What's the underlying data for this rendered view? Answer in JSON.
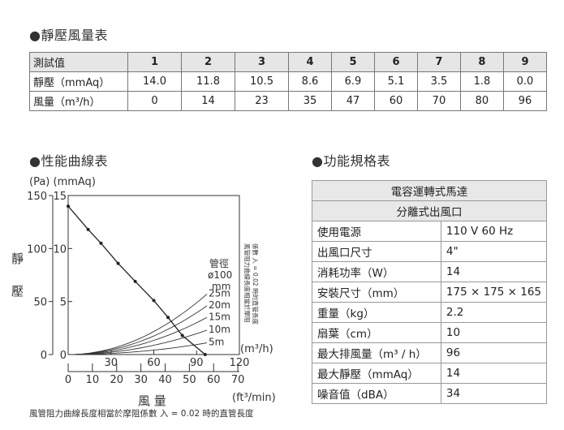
{
  "sections": {
    "static_pressure_airflow": "●靜壓風量表",
    "performance_curve": "●性能曲線表",
    "spec_table": "●功能規格表"
  },
  "measurement_table": {
    "header_label": "測試值",
    "columns": [
      "1",
      "2",
      "3",
      "4",
      "5",
      "6",
      "7",
      "8",
      "9"
    ],
    "rows": [
      {
        "label": "靜壓（mmAq）",
        "values": [
          "14.0",
          "11.8",
          "10.5",
          "8.6",
          "6.9",
          "5.1",
          "3.5",
          "1.8",
          "0.0"
        ]
      },
      {
        "label": "風量（m³/h）",
        "values": [
          "0",
          "14",
          "23",
          "35",
          "47",
          "60",
          "70",
          "80",
          "96"
        ]
      }
    ]
  },
  "chart_data": {
    "type": "line",
    "ylabel_units": "(Pa) (mmAq)",
    "y_mmAq_ticks": [
      "0",
      "5",
      "10",
      "15"
    ],
    "y_Pa_ticks": [
      "0",
      "50",
      "100",
      "150"
    ],
    "x_m3h_ticks": [
      "30",
      "60",
      "90",
      "120"
    ],
    "x_ftmin_ticks": [
      "0",
      "10",
      "20",
      "30",
      "40",
      "50",
      "60",
      "70"
    ],
    "x_unit_m3h": "(m³/h)",
    "x_unit_ftmin": "(ft³/min)",
    "xlabel": "風  量",
    "ylabel": "靜 壓",
    "xlim": [
      0,
      120
    ],
    "ylim": [
      0,
      15
    ],
    "series": [
      {
        "name": "fan",
        "x": [
          0,
          14,
          23,
          35,
          47,
          60,
          70,
          80,
          96
        ],
        "y": [
          14.0,
          11.8,
          10.5,
          8.6,
          6.9,
          5.1,
          3.5,
          1.8,
          0.0
        ]
      }
    ],
    "duct_curves": [
      {
        "name": "25m",
        "end_y": 5.7
      },
      {
        "name": "20m",
        "end_y": 4.6
      },
      {
        "name": "15m",
        "end_y": 3.5
      },
      {
        "name": "10m",
        "end_y": 2.3
      },
      {
        "name": "5m",
        "end_y": 1.1
      }
    ],
    "pipe_label": "管徑",
    "pipe_dia": "ø100",
    "pipe_unit": "mm",
    "side_note_1": "風管阻力曲線長度相當於摩阻",
    "side_note_2": "係數 入 = 0.02 時的直管長度",
    "footnote": "風管阻力曲線長度相當於摩阻係數 入 = 0.02 時的直管長度"
  },
  "spec_table": {
    "header_1": "電容運轉式馬達",
    "header_2": "分離式出風口",
    "rows": [
      {
        "label": "使用電源",
        "value": "110 V 60 Hz"
      },
      {
        "label": "出風口尺寸",
        "value": "4\""
      },
      {
        "label": "消耗功率（W）",
        "value": "14"
      },
      {
        "label": "安裝尺寸（mm）",
        "value": "175 × 175 × 165"
      },
      {
        "label": "重量（kg）",
        "value": "2.2"
      },
      {
        "label": "扇葉（cm）",
        "value": "10"
      },
      {
        "label": "最大排風量（m³ / h）",
        "value": "96"
      },
      {
        "label": "最大靜壓（mmAq）",
        "value": "14"
      },
      {
        "label": "噪音值（dBA）",
        "value": "34"
      }
    ]
  }
}
